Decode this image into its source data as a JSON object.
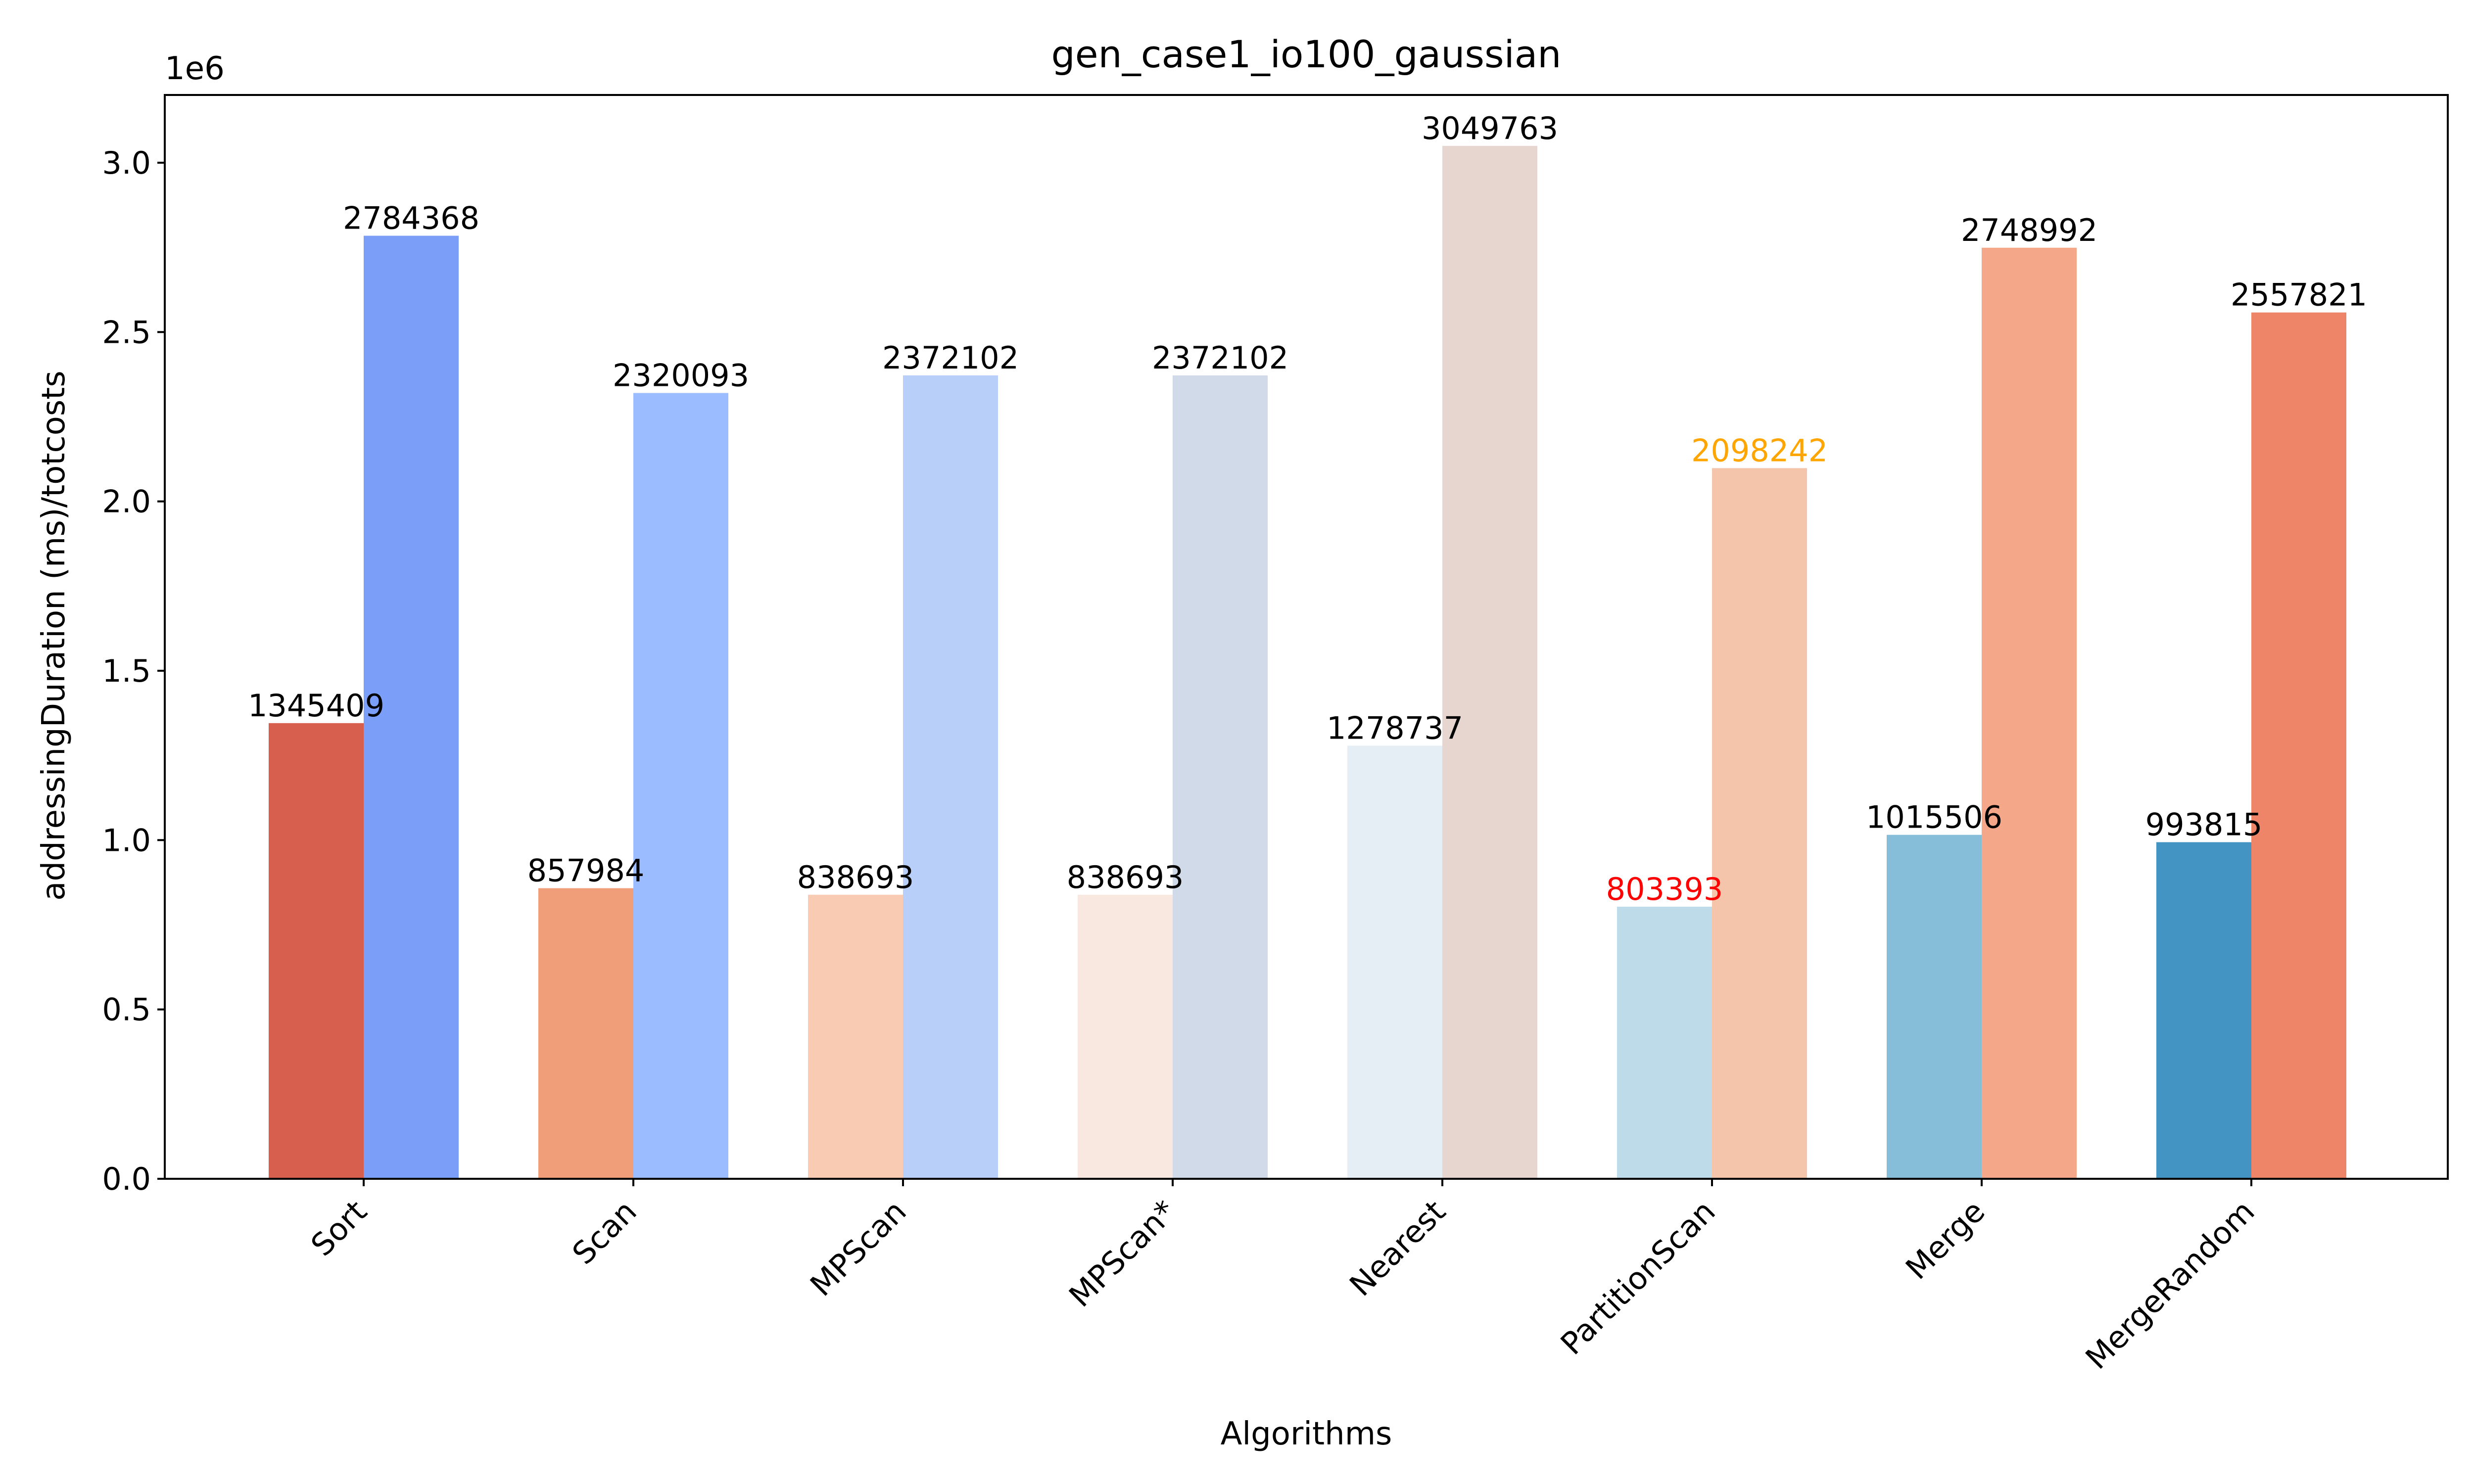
{
  "chart_data": {
    "type": "bar",
    "title": "gen_case1_io100_gaussian",
    "xlabel": "Algorithms",
    "ylabel": "addressingDuration (ms)/totcosts",
    "y_multiplier_label": "1e6",
    "ylim": [
      0,
      3200000
    ],
    "yticks": [
      0,
      500000,
      1000000,
      1500000,
      2000000,
      2500000,
      3000000
    ],
    "ytick_labels": [
      "0.0",
      "0.5",
      "1.0",
      "1.5",
      "2.0",
      "2.5",
      "3.0"
    ],
    "grid": false,
    "categories": [
      "Sort",
      "Scan",
      "MPScan",
      "MPScan*",
      "Nearest",
      "PartitionScan",
      "Merge",
      "MergeRandom"
    ],
    "series": [
      {
        "values": [
          1345409,
          857984,
          838693,
          838693,
          1278737,
          803393,
          1015506,
          993815
        ],
        "colors": [
          "#d6604d",
          "#f09d7a",
          "#f8cbb2",
          "#f8e8e0",
          "#e5eef4",
          "#bddbe9",
          "#86bdd9",
          "#4393c3"
        ],
        "label_colors": [
          "#000000",
          "#000000",
          "#000000",
          "#000000",
          "#000000",
          "#ff0000",
          "#000000",
          "#000000"
        ]
      },
      {
        "values": [
          2784368,
          2320093,
          2372102,
          2372102,
          3049763,
          2098242,
          2748992,
          2557821
        ],
        "colors": [
          "#7b9ff9",
          "#9bbcff",
          "#b8d0f9",
          "#d1dae9",
          "#e7d6cf",
          "#f4c4ab",
          "#f5a889",
          "#ee8468"
        ],
        "label_colors": [
          "#000000",
          "#000000",
          "#000000",
          "#000000",
          "#000000",
          "#ffa500",
          "#000000",
          "#000000"
        ]
      }
    ]
  }
}
